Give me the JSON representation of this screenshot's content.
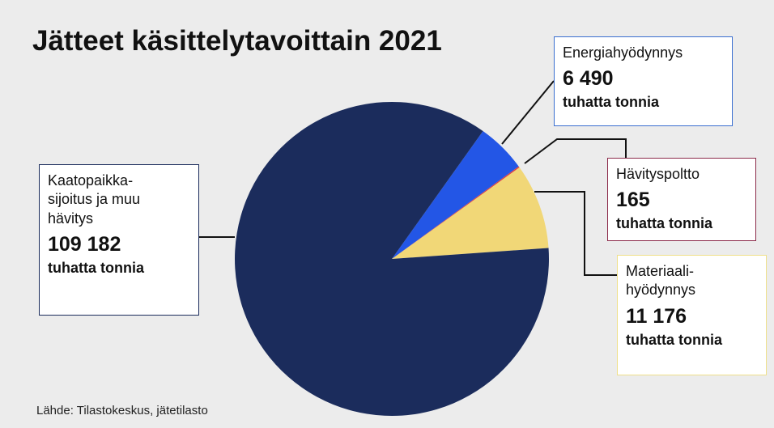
{
  "chart_data": {
    "type": "pie",
    "title": "Jätteet käsittelytavoittain 2021",
    "source": "Lähde: Tilastokeskus, jätetilasto",
    "categories": [
      "Kaatopaikka-\nsijoitus ja muu\nhävitys",
      "Energiahyödynnys",
      "Hävityspoltto",
      "Materiaali-\nhyödynnys"
    ],
    "values": [
      109182,
      6490,
      165,
      11176
    ],
    "value_labels": [
      "109 182",
      "6 490",
      "165",
      "11 176"
    ],
    "unit": "tuhatta tonnia",
    "colors": [
      "#1b2c5c",
      "#2356e6",
      "#e04040",
      "#f1d777"
    ]
  }
}
